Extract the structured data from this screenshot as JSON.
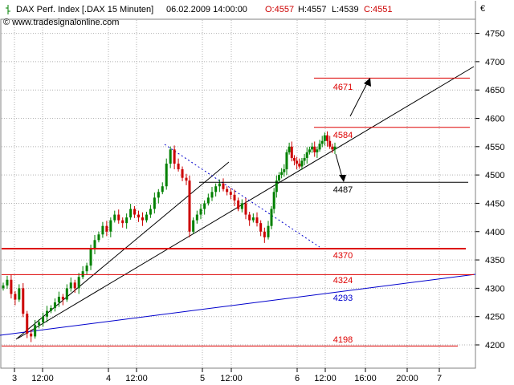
{
  "header": {
    "instrument": "DAX Perf. Index [.DAX  15 Minuten]",
    "timestamp": "06.02.2009 14:00:00",
    "open": "O:4557",
    "high": "H:4557",
    "low": "L:4539",
    "close": "C:4551",
    "copyright": "© www.tradesignalonline.com",
    "currency": "€"
  },
  "colors": {
    "up_candle": "#008000",
    "down_candle": "#cc0000",
    "level_line": "#dd0000",
    "trend_line": "#000000",
    "blue_line": "#0000cc",
    "grid": "#b0b0b0",
    "open_text": "#cc0000",
    "close_text": "#cc0000"
  },
  "chart_data": {
    "type": "candlestick",
    "title": "DAX Perf. Index [.DAX  15 Minuten]",
    "grid": true,
    "ylim": [
      4175,
      4785
    ],
    "y_ticks": [
      4200,
      4250,
      4300,
      4350,
      4400,
      4450,
      4500,
      4550,
      4600,
      4650,
      4700,
      4750
    ],
    "x_tick_labels": [
      "3",
      "12:00",
      "4",
      "12:00",
      "5",
      "12:00",
      "6",
      "12:00",
      "16:00",
      "20:00",
      "7"
    ],
    "level_lines": [
      {
        "label": "4671",
        "value": 4671,
        "color": "#dd0000"
      },
      {
        "label": "4584",
        "value": 4584,
        "color": "#dd0000"
      },
      {
        "label": "4487",
        "value": 4487,
        "color": "#000000"
      },
      {
        "label": "4370",
        "value": 4370,
        "color": "#dd0000"
      },
      {
        "label": "4324",
        "value": 4324,
        "color": "#dd0000"
      },
      {
        "label": "4293",
        "value": 4293,
        "color": "#0000cc"
      },
      {
        "label": "4198",
        "value": 4198,
        "color": "#dd0000"
      }
    ],
    "price_series": [
      4305,
      4315,
      4290,
      4280,
      4300,
      4255,
      4220,
      4215,
      4235,
      4240,
      4250,
      4260,
      4265,
      4275,
      4285,
      4280,
      4300,
      4310,
      4300,
      4320,
      4330,
      4340,
      4370,
      4385,
      4395,
      4410,
      4400,
      4420,
      4430,
      4420,
      4415,
      4425,
      4440,
      4430,
      4425,
      4420,
      4430,
      4440,
      4460,
      4470,
      4480,
      4520,
      4545,
      4520,
      4510,
      4495,
      4490,
      4400,
      4420,
      4430,
      4440,
      4450,
      4460,
      4470,
      4480,
      4485,
      4475,
      4470,
      4465,
      4455,
      4440,
      4450,
      4430,
      4420,
      4425,
      4415,
      4400,
      4390,
      4410,
      4440,
      4470,
      4490,
      4500,
      4505,
      4510,
      4540,
      4550,
      4530,
      4525,
      4520,
      4515,
      4525,
      4530,
      4540,
      4545,
      4550,
      4540,
      4545,
      4555,
      4560,
      4570,
      4560,
      4550,
      4545,
      4550
    ]
  }
}
